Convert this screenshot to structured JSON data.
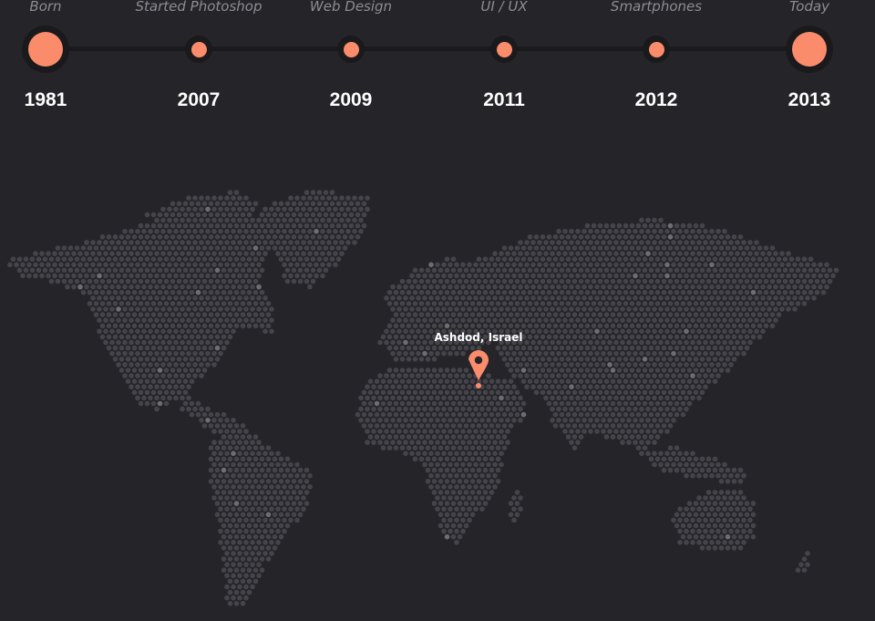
{
  "timeline": {
    "stops": [
      {
        "label": "Born",
        "year": "1981",
        "size": "large"
      },
      {
        "label": "Started Photoshop",
        "year": "2007",
        "size": "small"
      },
      {
        "label": "Web Design",
        "year": "2009",
        "size": "small"
      },
      {
        "label": "UI / UX",
        "year": "2011",
        "size": "small"
      },
      {
        "label": "Smartphones",
        "year": "2012",
        "size": "small"
      },
      {
        "label": "Today",
        "year": "2013",
        "size": "large"
      }
    ]
  },
  "map": {
    "location_label": "Ashdod, Israel",
    "pin_icon": "map-pin-icon"
  },
  "colors": {
    "background": "#252428",
    "accent": "#fb8c6b",
    "track": "#1a191c",
    "map_dot": "#45444a",
    "map_dot_highlight": "#6e6d73",
    "label": "#8e8c93",
    "year": "#ffffff"
  }
}
